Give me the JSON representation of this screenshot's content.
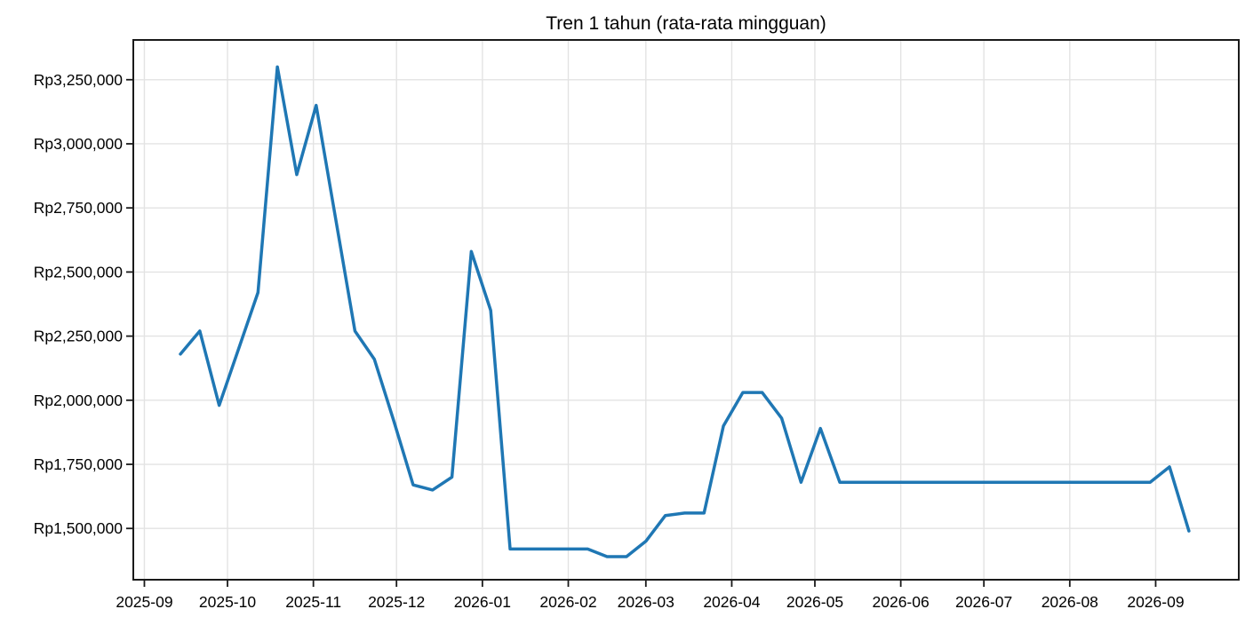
{
  "page": {
    "background": "#ffffff"
  },
  "chart_data": {
    "type": "line",
    "title": "Tren 1 tahun (rata-rata mingguan)",
    "series_name": "rata-rata mingguan",
    "xlabel": "",
    "ylabel": "",
    "currency_prefix": "Rp",
    "grid": true,
    "legend_position": "none",
    "x": [
      "2025-09-14",
      "2025-09-21",
      "2025-09-28",
      "2025-10-05",
      "2025-10-12",
      "2025-10-19",
      "2025-10-26",
      "2025-11-02",
      "2025-11-09",
      "2025-11-16",
      "2025-11-23",
      "2025-11-30",
      "2025-12-07",
      "2025-12-14",
      "2025-12-21",
      "2025-12-28",
      "2026-01-04",
      "2026-01-11",
      "2026-01-18",
      "2026-01-25",
      "2026-02-01",
      "2026-02-08",
      "2026-02-15",
      "2026-02-22",
      "2026-03-01",
      "2026-03-08",
      "2026-03-15",
      "2026-03-22",
      "2026-03-29",
      "2026-04-05",
      "2026-04-12",
      "2026-04-19",
      "2026-04-26",
      "2026-05-03",
      "2026-05-10",
      "2026-05-17",
      "2026-05-24",
      "2026-05-31",
      "2026-06-07",
      "2026-06-14",
      "2026-06-21",
      "2026-06-28",
      "2026-07-05",
      "2026-07-12",
      "2026-07-19",
      "2026-07-26",
      "2026-08-02",
      "2026-08-09",
      "2026-08-16",
      "2026-08-23",
      "2026-08-30",
      "2026-09-06",
      "2026-09-13"
    ],
    "values": [
      2180000,
      2270000,
      1980000,
      2200000,
      2420000,
      3300000,
      2880000,
      3150000,
      2710000,
      2270000,
      2160000,
      1920000,
      1670000,
      1650000,
      1700000,
      2580000,
      2350000,
      1420000,
      1420000,
      1420000,
      1420000,
      1420000,
      1390000,
      1390000,
      1450000,
      1550000,
      1560000,
      1560000,
      1900000,
      2030000,
      2030000,
      1930000,
      1680000,
      1890000,
      1680000,
      1680000,
      1680000,
      1680000,
      1680000,
      1680000,
      1680000,
      1680000,
      1680000,
      1680000,
      1680000,
      1680000,
      1680000,
      1680000,
      1680000,
      1680000,
      1680000,
      1740000,
      1490000
    ],
    "x_ticks": [
      "2025-09",
      "2025-10",
      "2025-11",
      "2025-12",
      "2026-01",
      "2026-02",
      "2026-03",
      "2026-04",
      "2026-05",
      "2026-06",
      "2026-07",
      "2026-08",
      "2026-09"
    ],
    "y_ticks": [
      1500000,
      1750000,
      2000000,
      2250000,
      2500000,
      2750000,
      3000000,
      3250000
    ],
    "y_tick_labels": [
      "Rp1,500,000",
      "Rp1,750,000",
      "Rp2,000,000",
      "Rp2,250,000",
      "Rp2,500,000",
      "Rp2,750,000",
      "Rp3,000,000",
      "Rp3,250,000"
    ],
    "xlim": [
      "2025-08-28",
      "2026-10-01"
    ],
    "ylim": [
      1300000,
      3405000
    ],
    "colors": {
      "line": "#1f77b4",
      "grid": "#e3e3e3",
      "axis": "#1a1a1a",
      "text": "#000000",
      "background": "#ffffff"
    }
  }
}
